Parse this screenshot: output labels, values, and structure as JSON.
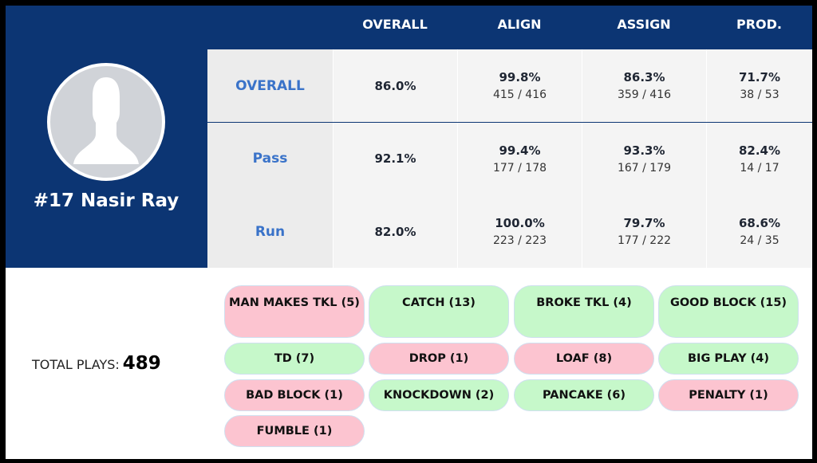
{
  "player": {
    "name": "#17 Nasir Ray"
  },
  "columns": [
    "OVERALL",
    "ALIGN",
    "ASSIGN",
    "PROD."
  ],
  "rows": [
    {
      "label": "OVERALL",
      "overall": "86.0%",
      "align": {
        "pct": "99.8%",
        "frac": "415 / 416"
      },
      "assign": {
        "pct": "86.3%",
        "frac": "359 / 416"
      },
      "prod": {
        "pct": "71.7%",
        "frac": "38 / 53"
      }
    },
    {
      "label": "Pass",
      "overall": "92.1%",
      "align": {
        "pct": "99.4%",
        "frac": "177 / 178"
      },
      "assign": {
        "pct": "93.3%",
        "frac": "167 / 179"
      },
      "prod": {
        "pct": "82.4%",
        "frac": "14 / 17"
      }
    },
    {
      "label": "Run",
      "overall": "82.0%",
      "align": {
        "pct": "100.0%",
        "frac": "223 / 223"
      },
      "assign": {
        "pct": "79.7%",
        "frac": "177 / 222"
      },
      "prod": {
        "pct": "68.6%",
        "frac": "24 / 35"
      }
    }
  ],
  "total_plays": {
    "label": "TOTAL PLAYS:",
    "value": "489"
  },
  "tags": [
    {
      "label": "MAN MAKES TKL (5)",
      "type": "neg"
    },
    {
      "label": "CATCH (13)",
      "type": "pos"
    },
    {
      "label": "BROKE TKL (4)",
      "type": "pos"
    },
    {
      "label": "GOOD BLOCK (15)",
      "type": "pos"
    },
    {
      "label": "TD (7)",
      "type": "pos"
    },
    {
      "label": "DROP (1)",
      "type": "neg"
    },
    {
      "label": "LOAF (8)",
      "type": "neg"
    },
    {
      "label": "BIG PLAY (4)",
      "type": "pos"
    },
    {
      "label": "BAD BLOCK (1)",
      "type": "neg"
    },
    {
      "label": "KNOCKDOWN (2)",
      "type": "pos"
    },
    {
      "label": "PANCAKE (6)",
      "type": "pos"
    },
    {
      "label": "PENALTY (1)",
      "type": "neg"
    },
    {
      "label": "FUMBLE (1)",
      "type": "neg"
    }
  ],
  "colors": {
    "header": "#0c3573",
    "accent": "#3a73c9",
    "positive": "#c6f8ca",
    "negative": "#fcc4d0"
  }
}
